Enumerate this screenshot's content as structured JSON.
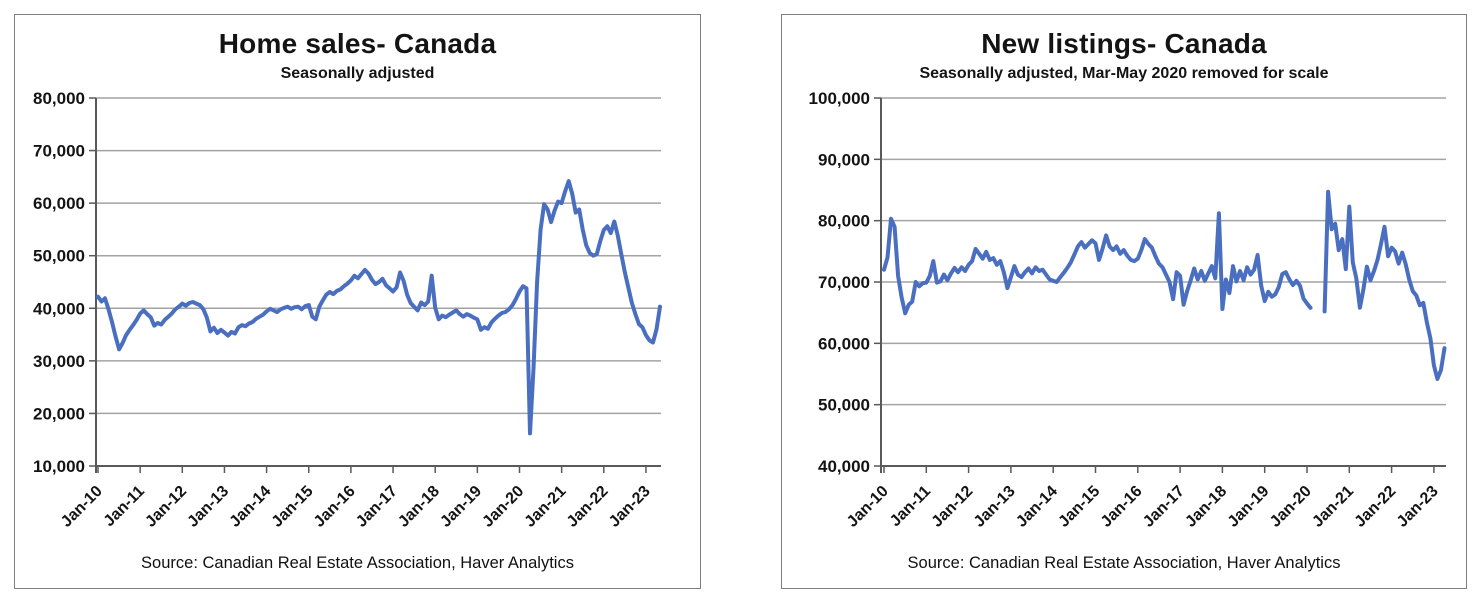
{
  "page_background": "#ffffff",
  "chart_data": [
    {
      "type": "line",
      "title": "Home sales- Canada",
      "subtitle": "Seasonally adjusted",
      "source_note": "Source: Canadian Real Estate Association, Haver Analytics",
      "frequency": "monthly",
      "x_start_label": "Jan-10",
      "x_tick_labels": [
        "Jan-10",
        "Jan-11",
        "Jan-12",
        "Jan-13",
        "Jan-14",
        "Jan-15",
        "Jan-16",
        "Jan-17",
        "Jan-18",
        "Jan-19",
        "Jan-20",
        "Jan-21",
        "Jan-22",
        "Jan-23"
      ],
      "ylim": [
        10000,
        80000
      ],
      "y_tick_step": 10000,
      "grid": true,
      "legend": "none",
      "line_color": "#4a6fc0",
      "grid_color": "#a3a3a3",
      "axis_color": "#595959",
      "text_color": "#141414",
      "series": [
        {
          "name": "Home sales, seasonally adjusted (units)",
          "values": [
            42200,
            41300,
            41900,
            39800,
            37400,
            34600,
            32200,
            33400,
            34900,
            35900,
            36800,
            37800,
            39000,
            39600,
            38900,
            38300,
            36700,
            37200,
            36900,
            37800,
            38400,
            39000,
            39800,
            40300,
            40900,
            40500,
            41000,
            41200,
            40900,
            40600,
            39800,
            38200,
            35600,
            36300,
            35300,
            35900,
            35400,
            34800,
            35500,
            35200,
            36400,
            36800,
            36600,
            37100,
            37400,
            38000,
            38400,
            38800,
            39400,
            39900,
            39600,
            39300,
            39800,
            40100,
            40300,
            39900,
            40200,
            40300,
            39800,
            40400,
            40600,
            38400,
            37900,
            40300,
            41500,
            42600,
            43100,
            42700,
            43300,
            43600,
            44200,
            44700,
            45300,
            46200,
            45700,
            46500,
            47300,
            46600,
            45400,
            44600,
            45000,
            45600,
            44400,
            43800,
            43200,
            44000,
            46800,
            45200,
            42600,
            41000,
            40300,
            39600,
            41100,
            40600,
            41300,
            46200,
            40100,
            37900,
            38600,
            38300,
            38800,
            39200,
            39600,
            38900,
            38400,
            38900,
            38600,
            38200,
            37900,
            35900,
            36400,
            36100,
            37300,
            38000,
            38600,
            39100,
            39300,
            39800,
            40600,
            41800,
            43200,
            44200,
            43800,
            16200,
            28500,
            45000,
            55000,
            59800,
            58800,
            56400,
            58600,
            60300,
            60000,
            62300,
            64200,
            61800,
            58200,
            58800,
            55000,
            52000,
            50500,
            50000,
            50300,
            52800,
            54900,
            55600,
            54300,
            56500,
            53800,
            50200,
            46800,
            43900,
            41000,
            38900,
            37000,
            36400,
            34900,
            33900,
            33500,
            36000,
            40300
          ]
        }
      ]
    },
    {
      "type": "line",
      "title": "New listings- Canada",
      "subtitle": "Seasonally adjusted, Mar-May 2020 removed for scale",
      "source_note": "Source: Canadian Real Estate Association, Haver Analytics",
      "frequency": "monthly",
      "x_start_label": "Jan-10",
      "gap_note": "Mar-May 2020 removed for scale",
      "x_tick_labels": [
        "Jan-10",
        "Jan-11",
        "Jan-12",
        "Jan-13",
        "Jan-14",
        "Jan-15",
        "Jan-16",
        "Jan-17",
        "Jan-18",
        "Jan-19",
        "Jan-20",
        "Jan-21",
        "Jan-22",
        "Jan-23"
      ],
      "ylim": [
        40000,
        100000
      ],
      "y_tick_step": 10000,
      "grid": true,
      "legend": "none",
      "line_color": "#4a6fc0",
      "grid_color": "#a3a3a3",
      "axis_color": "#595959",
      "text_color": "#141414",
      "series": [
        {
          "name": "New listings, seasonally adjusted (units)",
          "values": [
            72000,
            74000,
            80300,
            79000,
            71000,
            67500,
            64900,
            66300,
            66800,
            70000,
            69300,
            69800,
            69900,
            71000,
            73400,
            69900,
            70100,
            71200,
            70300,
            71400,
            72300,
            71600,
            72400,
            71800,
            72800,
            73400,
            75400,
            74600,
            73800,
            74900,
            73600,
            73900,
            72800,
            73400,
            71600,
            69000,
            70800,
            72600,
            71200,
            70800,
            71600,
            72200,
            71400,
            72400,
            71800,
            72000,
            71200,
            70400,
            70200,
            70000,
            70800,
            71500,
            72300,
            73200,
            74500,
            75800,
            76500,
            75600,
            76200,
            76800,
            76300,
            73600,
            75400,
            77600,
            75800,
            75200,
            75800,
            74600,
            75200,
            74300,
            73600,
            73400,
            73800,
            75200,
            77000,
            76200,
            75600,
            74200,
            73000,
            72400,
            71200,
            70000,
            67200,
            71600,
            71000,
            66300,
            68500,
            70300,
            72200,
            70400,
            71800,
            70200,
            71400,
            72600,
            70600,
            81200,
            65600,
            70400,
            68200,
            72600,
            70100,
            71800,
            70300,
            72400,
            71200,
            72000,
            74400,
            69400,
            66900,
            68400,
            67600,
            68000,
            69200,
            71300,
            71600,
            70400,
            69500,
            70200,
            69400,
            67300,
            66500,
            65800,
            null,
            null,
            null,
            65200,
            84700,
            78600,
            79500,
            75200,
            77000,
            72100,
            82300,
            73200,
            70600,
            65800,
            68800,
            72500,
            70300,
            71800,
            73600,
            76200,
            79000,
            74200,
            75600,
            75000,
            73000,
            74800,
            72900,
            70400,
            68500,
            67800,
            66200,
            66600,
            63400,
            60800,
            56400,
            54200,
            55600,
            59200
          ]
        }
      ]
    }
  ]
}
